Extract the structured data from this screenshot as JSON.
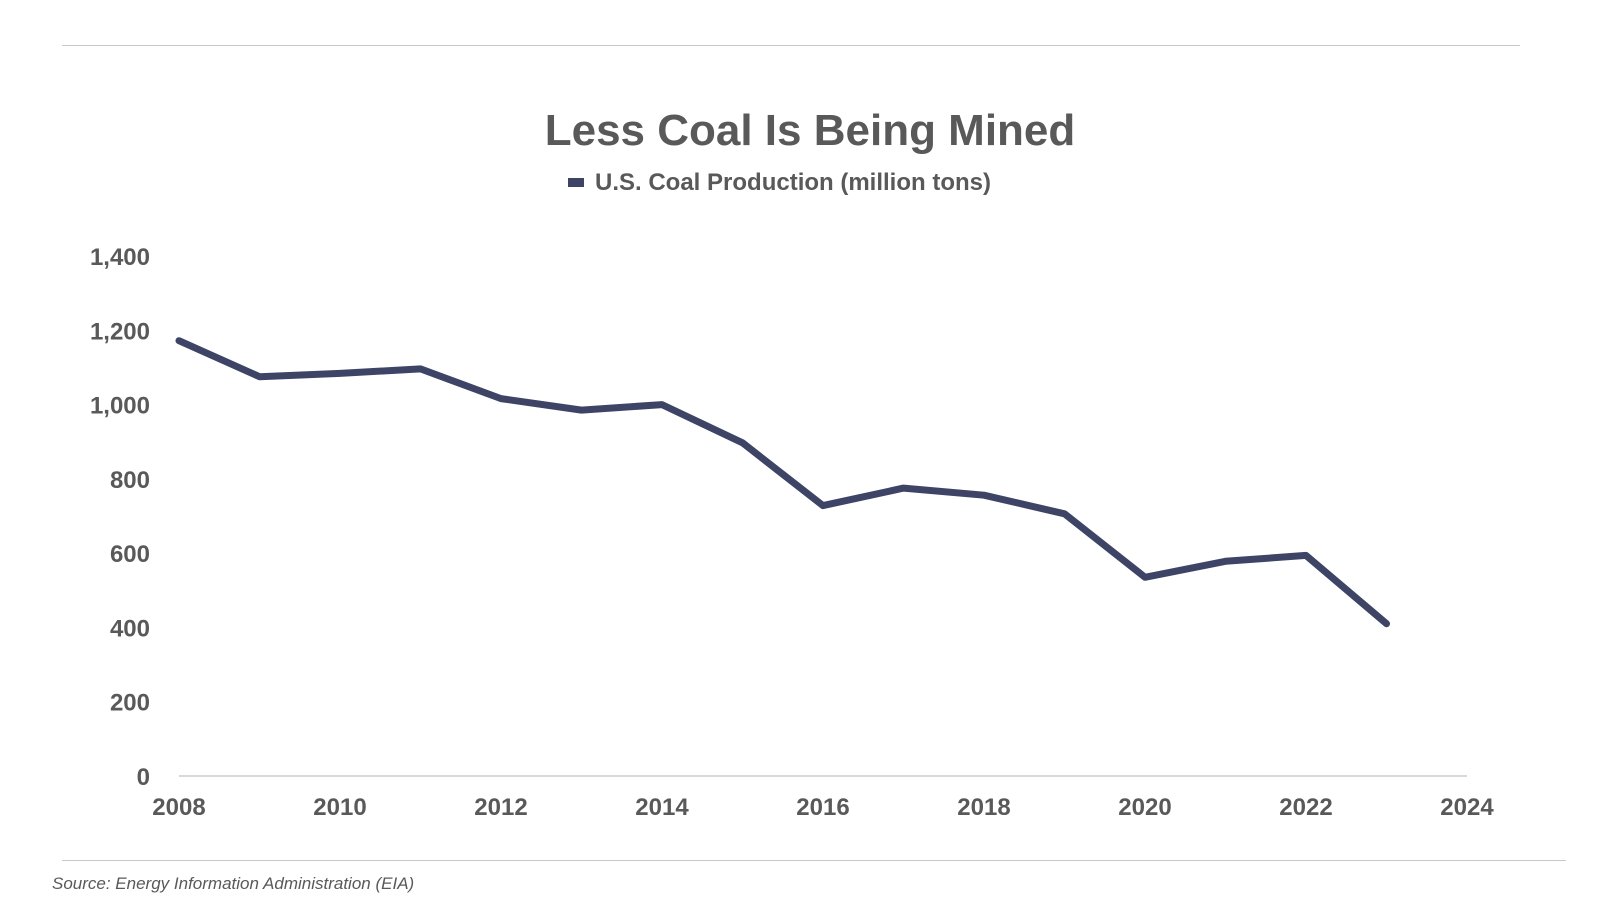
{
  "page": {
    "source": "Source: Energy Information Administration (EIA)"
  },
  "colors": {
    "series": "#3e4466",
    "text": "#595959",
    "axis": "#d9d9d9",
    "rule": "#c9c9c9"
  },
  "chart_data": {
    "type": "line",
    "title": "Less Coal Is Being Mined",
    "xlabel": "",
    "ylabel": "",
    "legend_position": "top-center",
    "grid": false,
    "xlim": [
      2008,
      2024
    ],
    "ylim": [
      0,
      1400
    ],
    "x_ticks": [
      "2008",
      "2010",
      "2012",
      "2014",
      "2016",
      "2018",
      "2020",
      "2022",
      "2024"
    ],
    "y_ticks": [
      "0",
      "200",
      "400",
      "600",
      "800",
      "1,000",
      "1,200",
      "1,400"
    ],
    "x": [
      2008,
      2009,
      2010,
      2011,
      2012,
      2013,
      2014,
      2015,
      2016,
      2017,
      2018,
      2019,
      2020,
      2021,
      2022,
      2023
    ],
    "series": [
      {
        "name": "U.S. Coal Production (million tons)",
        "values": [
          1172,
          1075,
          1084,
          1096,
          1016,
          985,
          1000,
          897,
          728,
          775,
          756,
          706,
          535,
          578,
          594,
          410
        ]
      }
    ]
  }
}
